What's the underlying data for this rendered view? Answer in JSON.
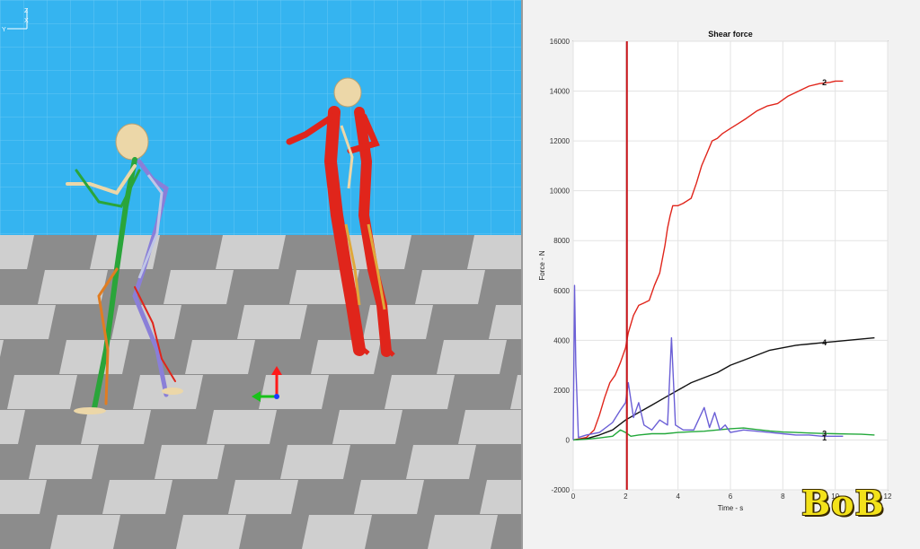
{
  "scene": {
    "axis_labels": {
      "z": "Z",
      "x": "X",
      "y": "Y"
    },
    "colors": {
      "sky": "#35b4f0",
      "floor_light": "#cfcfcf",
      "floor_dark": "#8c8c8c"
    }
  },
  "watermark": "BoB",
  "chart_data": {
    "type": "line",
    "title": "Shear force",
    "xlabel": "Time - s",
    "ylabel": "Force - N",
    "xlim": [
      0,
      12
    ],
    "ylim": [
      -2000,
      16000
    ],
    "xticks": [
      0,
      2,
      4,
      6,
      8,
      10,
      12
    ],
    "yticks": [
      -2000,
      0,
      2000,
      4000,
      6000,
      8000,
      10000,
      12000,
      14000,
      16000
    ],
    "grid": true,
    "cursor_x": 2.05,
    "series": [
      {
        "name": "2",
        "color": "#e0251b",
        "x": [
          0,
          0.5,
          0.8,
          1.0,
          1.2,
          1.4,
          1.6,
          1.8,
          2.0,
          2.1,
          2.3,
          2.5,
          2.7,
          2.9,
          3.1,
          3.3,
          3.5,
          3.6,
          3.7,
          3.8,
          4.0,
          4.2,
          4.5,
          4.7,
          4.9,
          5.1,
          5.3,
          5.5,
          5.7,
          6.0,
          6.3,
          6.6,
          7.0,
          7.4,
          7.8,
          8.2,
          8.6,
          9.0,
          9.4,
          9.8,
          10.0,
          10.3
        ],
        "y": [
          0,
          100,
          400,
          1000,
          1700,
          2300,
          2600,
          3100,
          3700,
          4300,
          5000,
          5400,
          5500,
          5600,
          6200,
          6700,
          7800,
          8500,
          9000,
          9400,
          9400,
          9500,
          9700,
          10300,
          11000,
          11500,
          12000,
          12100,
          12300,
          12500,
          12700,
          12900,
          13200,
          13400,
          13500,
          13800,
          14000,
          14200,
          14300,
          14350,
          14400,
          14400
        ],
        "label_x": 9.5,
        "label_y": 14350
      },
      {
        "name": "4",
        "color": "#111111",
        "x": [
          0,
          0.5,
          1.0,
          1.5,
          2.0,
          2.5,
          3.0,
          3.5,
          4.0,
          4.5,
          5.0,
          5.5,
          6.0,
          6.5,
          7.0,
          7.5,
          8.0,
          8.5,
          9.0,
          9.5,
          10.0,
          10.5,
          11.0,
          11.5
        ],
        "y": [
          0,
          50,
          200,
          400,
          800,
          1100,
          1400,
          1700,
          2000,
          2300,
          2500,
          2700,
          3000,
          3200,
          3400,
          3600,
          3700,
          3800,
          3850,
          3900,
          3950,
          4000,
          4050,
          4100
        ],
        "label_x": 9.5,
        "label_y": 3900
      },
      {
        "name": "3",
        "color": "#22a83a",
        "x": [
          0,
          0.5,
          1.0,
          1.5,
          1.8,
          2.0,
          2.2,
          2.5,
          3.0,
          3.5,
          4.0,
          4.5,
          5.0,
          5.5,
          6.0,
          6.5,
          7.0,
          7.5,
          8.0,
          8.5,
          9.0,
          9.5,
          10.0,
          10.5,
          11.0,
          11.5
        ],
        "y": [
          0,
          30,
          80,
          150,
          400,
          300,
          150,
          200,
          250,
          250,
          300,
          330,
          350,
          400,
          450,
          480,
          420,
          360,
          320,
          300,
          280,
          260,
          250,
          240,
          230,
          200
        ],
        "label_x": 9.5,
        "label_y": 250
      },
      {
        "name": "1",
        "color": "#6b5fd6",
        "x": [
          0,
          0.05,
          0.1,
          0.2,
          0.5,
          1.0,
          1.5,
          1.8,
          2.0,
          2.1,
          2.3,
          2.5,
          2.7,
          3.0,
          3.3,
          3.6,
          3.75,
          3.9,
          4.2,
          4.6,
          5.0,
          5.2,
          5.4,
          5.6,
          5.8,
          6.0,
          6.5,
          7.0,
          7.5,
          8.0,
          8.5,
          9.0,
          9.5,
          10.0,
          10.3
        ],
        "y": [
          0,
          6200,
          3000,
          100,
          200,
          300,
          700,
          1200,
          1500,
          2300,
          900,
          1500,
          600,
          400,
          800,
          600,
          4100,
          600,
          400,
          400,
          1300,
          500,
          1100,
          400,
          600,
          300,
          400,
          350,
          300,
          250,
          200,
          200,
          150,
          150,
          150
        ],
        "label_x": 9.5,
        "label_y": 80
      }
    ]
  }
}
